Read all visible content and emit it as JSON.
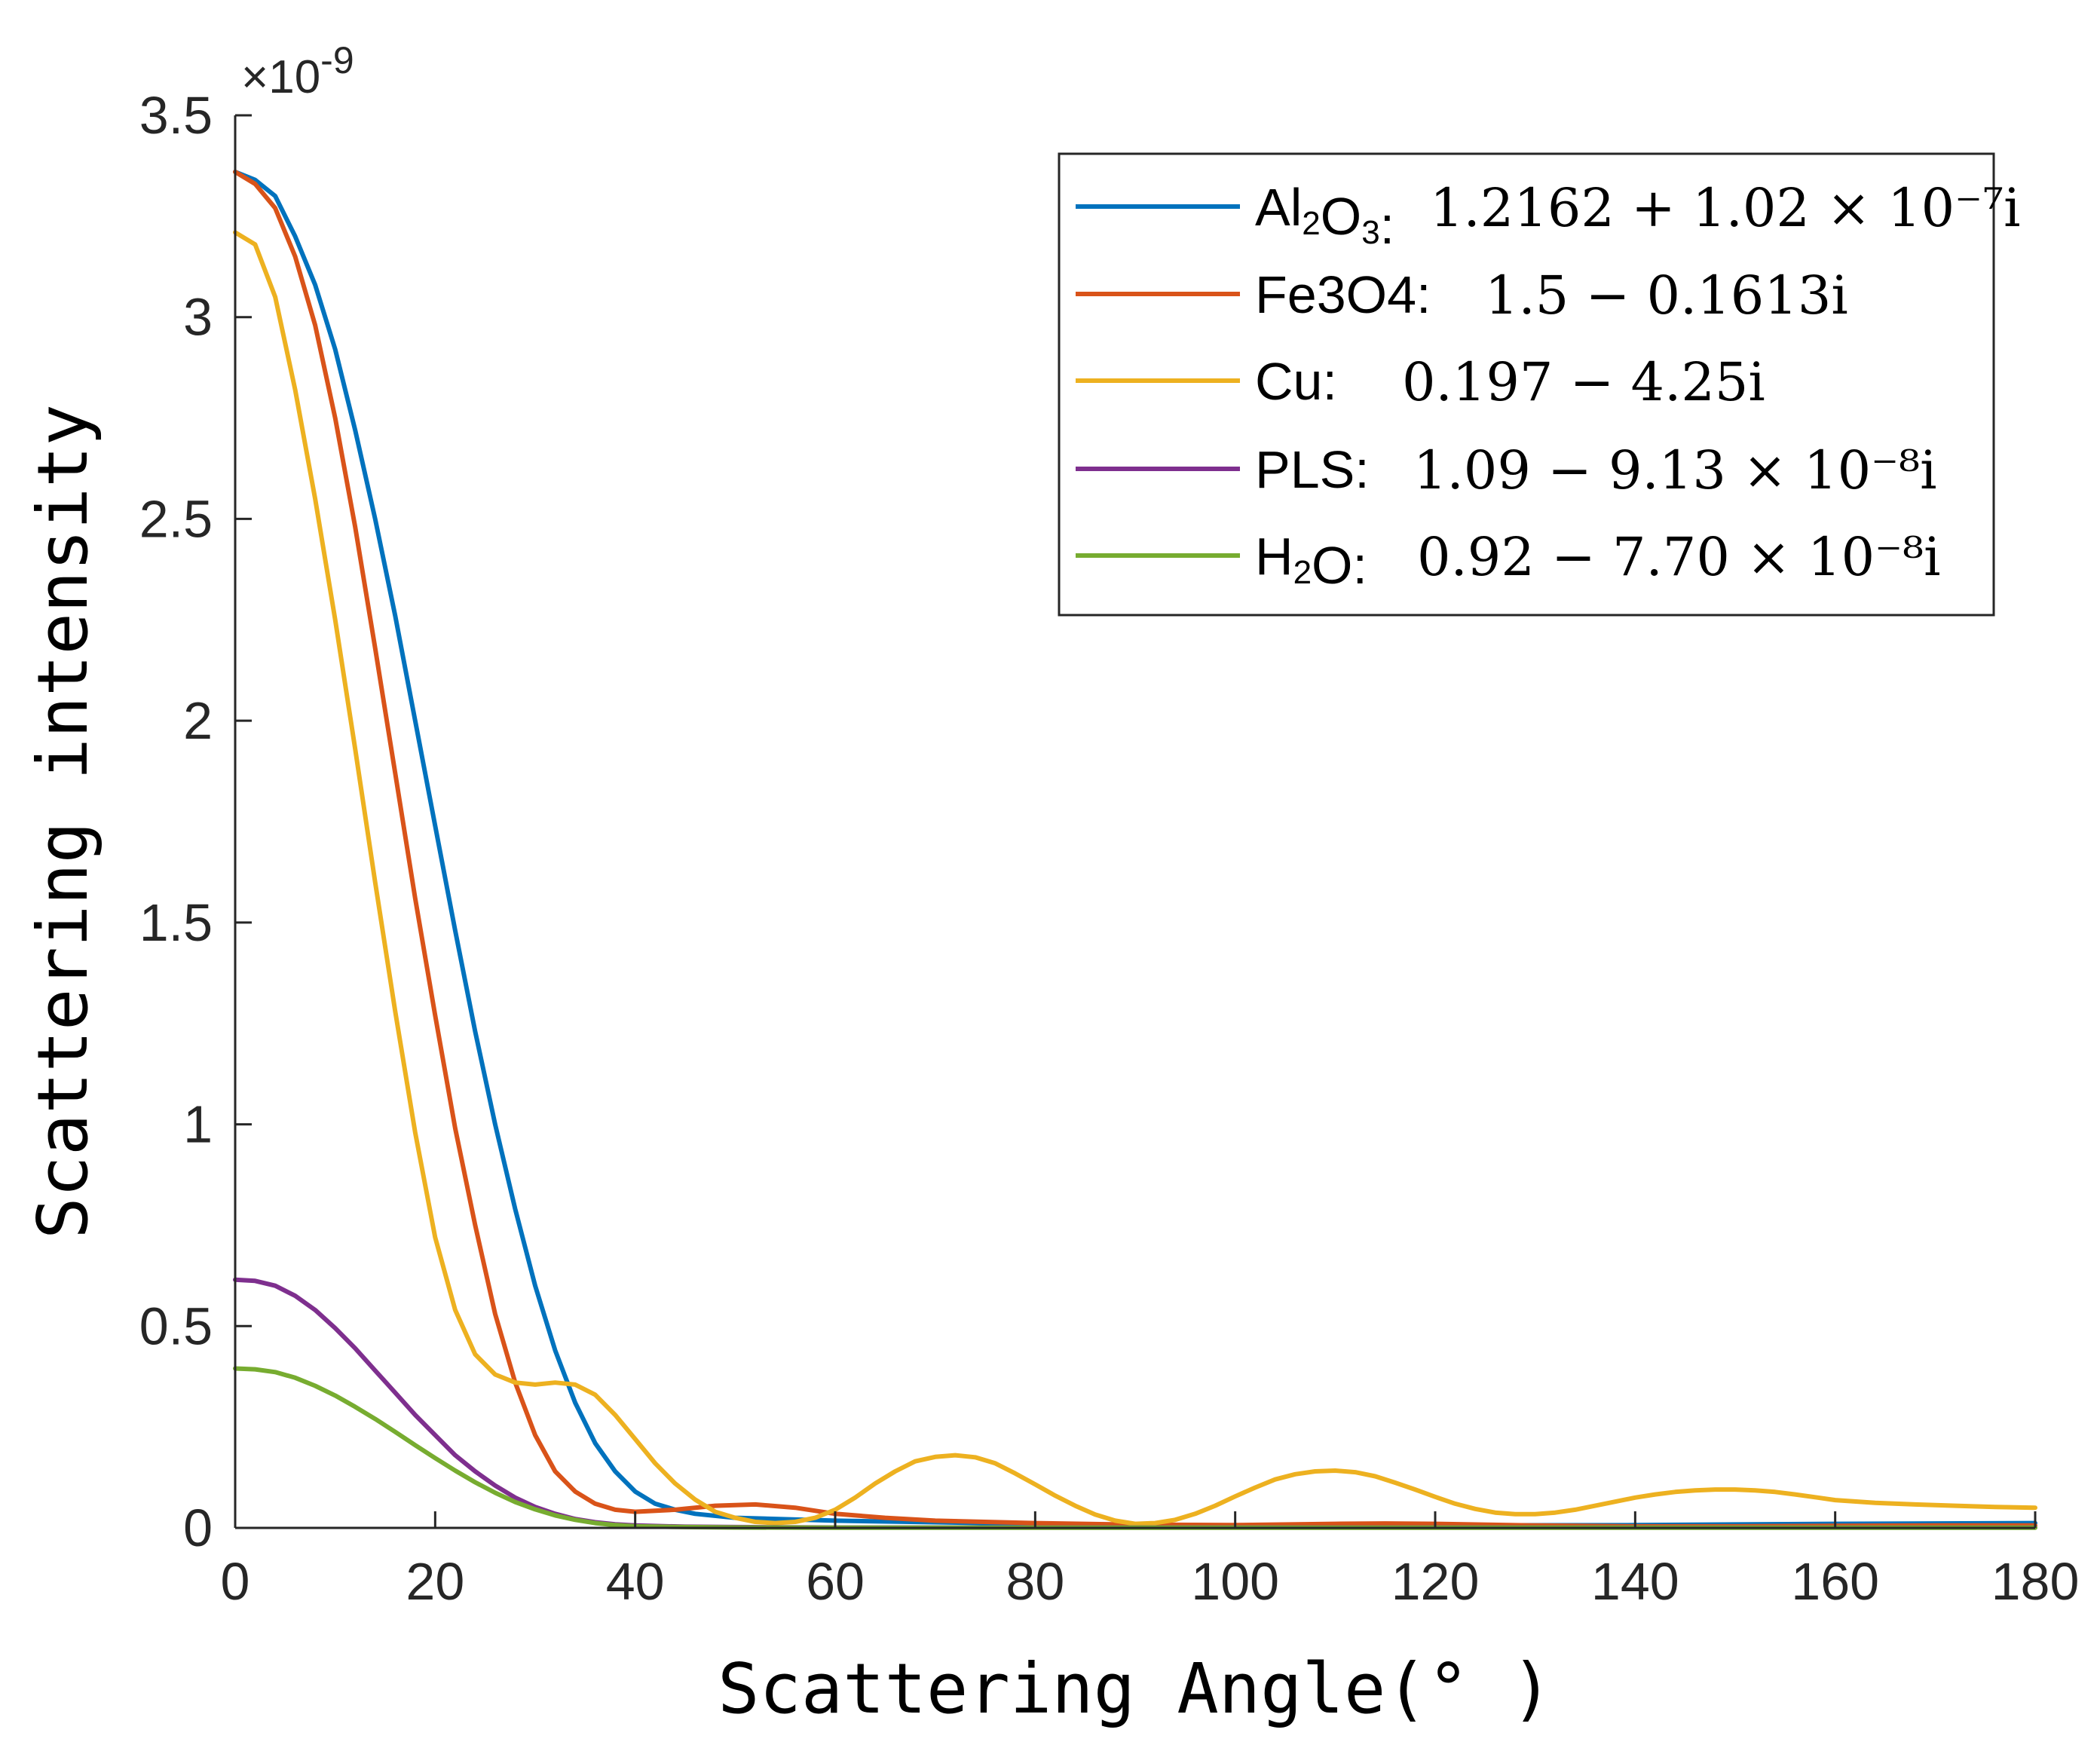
{
  "chart_data": {
    "type": "line",
    "title": "",
    "xlabel": "Scattering Angle(° )",
    "ylabel": "Scattering intensity",
    "y_exponent_label": "×10",
    "y_exponent_power": "-9",
    "xlim": [
      0,
      180
    ],
    "ylim": [
      0,
      3.5
    ],
    "x_ticks": [
      0,
      20,
      40,
      60,
      80,
      100,
      120,
      140,
      160,
      180
    ],
    "y_ticks": [
      0,
      0.5,
      1,
      1.5,
      2,
      2.5,
      3,
      3.5
    ],
    "y_tick_labels": [
      "0",
      "0.5",
      "1",
      "1.5",
      "2",
      "2.5",
      "3",
      "3.5"
    ],
    "grid": false,
    "legend_position": "top-right",
    "series": [
      {
        "name": "Al2O3",
        "label_parts": [
          "Al",
          "2",
          "O",
          "3",
          ":"
        ],
        "formula": "1.2162 + 1.02 × 10⁻⁷i",
        "color": "#0072BD",
        "points": [
          [
            0,
            3.36
          ],
          [
            2,
            3.34
          ],
          [
            4,
            3.3
          ],
          [
            6,
            3.2
          ],
          [
            8,
            3.08
          ],
          [
            10,
            2.92
          ],
          [
            12,
            2.72
          ],
          [
            14,
            2.5
          ],
          [
            16,
            2.26
          ],
          [
            18,
            2.0
          ],
          [
            20,
            1.74
          ],
          [
            22,
            1.48
          ],
          [
            24,
            1.23
          ],
          [
            26,
            1.0
          ],
          [
            28,
            0.79
          ],
          [
            30,
            0.6
          ],
          [
            32,
            0.44
          ],
          [
            34,
            0.31
          ],
          [
            36,
            0.21
          ],
          [
            38,
            0.14
          ],
          [
            40,
            0.09
          ],
          [
            42,
            0.06
          ],
          [
            44,
            0.045
          ],
          [
            46,
            0.035
          ],
          [
            50,
            0.025
          ],
          [
            60,
            0.018
          ],
          [
            70,
            0.014
          ],
          [
            80,
            0.01
          ],
          [
            90,
            0.008
          ],
          [
            100,
            0.006
          ],
          [
            120,
            0.006
          ],
          [
            140,
            0.007
          ],
          [
            160,
            0.01
          ],
          [
            180,
            0.012
          ]
        ]
      },
      {
        "name": "Fe3O4",
        "label_parts": [
          "Fe3O4:"
        ],
        "formula": "1.5 − 0.1613i",
        "color": "#D95319",
        "points": [
          [
            0,
            3.36
          ],
          [
            2,
            3.33
          ],
          [
            4,
            3.27
          ],
          [
            6,
            3.15
          ],
          [
            8,
            2.98
          ],
          [
            10,
            2.75
          ],
          [
            12,
            2.48
          ],
          [
            14,
            2.18
          ],
          [
            16,
            1.87
          ],
          [
            18,
            1.56
          ],
          [
            20,
            1.27
          ],
          [
            22,
            0.99
          ],
          [
            24,
            0.75
          ],
          [
            26,
            0.53
          ],
          [
            28,
            0.36
          ],
          [
            30,
            0.23
          ],
          [
            32,
            0.14
          ],
          [
            34,
            0.09
          ],
          [
            36,
            0.06
          ],
          [
            38,
            0.045
          ],
          [
            40,
            0.04
          ],
          [
            44,
            0.045
          ],
          [
            48,
            0.055
          ],
          [
            52,
            0.058
          ],
          [
            56,
            0.05
          ],
          [
            60,
            0.035
          ],
          [
            65,
            0.025
          ],
          [
            70,
            0.018
          ],
          [
            80,
            0.012
          ],
          [
            90,
            0.008
          ],
          [
            100,
            0.007
          ],
          [
            110,
            0.01
          ],
          [
            115,
            0.011
          ],
          [
            120,
            0.01
          ],
          [
            130,
            0.006
          ],
          [
            140,
            0.004
          ],
          [
            150,
            0.004
          ],
          [
            160,
            0.005
          ],
          [
            170,
            0.006
          ],
          [
            180,
            0.006
          ]
        ]
      },
      {
        "name": "Cu",
        "label_parts": [
          "Cu:"
        ],
        "formula": "0.197 − 4.25i",
        "color": "#EDB120",
        "points": [
          [
            0,
            3.21
          ],
          [
            2,
            3.18
          ],
          [
            4,
            3.05
          ],
          [
            6,
            2.82
          ],
          [
            8,
            2.55
          ],
          [
            10,
            2.25
          ],
          [
            12,
            1.93
          ],
          [
            14,
            1.6
          ],
          [
            16,
            1.28
          ],
          [
            18,
            0.98
          ],
          [
            20,
            0.72
          ],
          [
            22,
            0.54
          ],
          [
            24,
            0.43
          ],
          [
            26,
            0.38
          ],
          [
            28,
            0.36
          ],
          [
            30,
            0.355
          ],
          [
            32,
            0.36
          ],
          [
            34,
            0.355
          ],
          [
            36,
            0.33
          ],
          [
            38,
            0.28
          ],
          [
            40,
            0.22
          ],
          [
            42,
            0.16
          ],
          [
            44,
            0.11
          ],
          [
            46,
            0.07
          ],
          [
            48,
            0.04
          ],
          [
            50,
            0.025
          ],
          [
            52,
            0.015
          ],
          [
            54,
            0.012
          ],
          [
            56,
            0.015
          ],
          [
            58,
            0.025
          ],
          [
            60,
            0.045
          ],
          [
            62,
            0.075
          ],
          [
            64,
            0.11
          ],
          [
            66,
            0.14
          ],
          [
            68,
            0.165
          ],
          [
            70,
            0.176
          ],
          [
            72,
            0.18
          ],
          [
            74,
            0.175
          ],
          [
            76,
            0.16
          ],
          [
            78,
            0.135
          ],
          [
            80,
            0.108
          ],
          [
            82,
            0.08
          ],
          [
            84,
            0.055
          ],
          [
            86,
            0.033
          ],
          [
            88,
            0.018
          ],
          [
            90,
            0.01
          ],
          [
            92,
            0.012
          ],
          [
            94,
            0.02
          ],
          [
            96,
            0.035
          ],
          [
            98,
            0.055
          ],
          [
            100,
            0.078
          ],
          [
            102,
            0.1
          ],
          [
            104,
            0.12
          ],
          [
            106,
            0.133
          ],
          [
            108,
            0.14
          ],
          [
            110,
            0.142
          ],
          [
            112,
            0.138
          ],
          [
            114,
            0.128
          ],
          [
            116,
            0.112
          ],
          [
            118,
            0.095
          ],
          [
            120,
            0.077
          ],
          [
            122,
            0.06
          ],
          [
            124,
            0.047
          ],
          [
            126,
            0.038
          ],
          [
            128,
            0.034
          ],
          [
            130,
            0.034
          ],
          [
            132,
            0.038
          ],
          [
            134,
            0.045
          ],
          [
            136,
            0.055
          ],
          [
            138,
            0.065
          ],
          [
            140,
            0.075
          ],
          [
            142,
            0.083
          ],
          [
            144,
            0.089
          ],
          [
            146,
            0.093
          ],
          [
            148,
            0.095
          ],
          [
            150,
            0.095
          ],
          [
            152,
            0.093
          ],
          [
            154,
            0.089
          ],
          [
            156,
            0.083
          ],
          [
            158,
            0.076
          ],
          [
            160,
            0.069
          ],
          [
            164,
            0.062
          ],
          [
            168,
            0.058
          ],
          [
            172,
            0.055
          ],
          [
            176,
            0.052
          ],
          [
            180,
            0.05
          ]
        ]
      },
      {
        "name": "PLS",
        "label_parts": [
          "PLS:"
        ],
        "formula": "1.09 − 9.13 × 10⁻⁸i",
        "color": "#7E2F8E",
        "points": [
          [
            0,
            0.615
          ],
          [
            2,
            0.612
          ],
          [
            4,
            0.6
          ],
          [
            6,
            0.575
          ],
          [
            8,
            0.54
          ],
          [
            10,
            0.495
          ],
          [
            12,
            0.445
          ],
          [
            14,
            0.39
          ],
          [
            16,
            0.335
          ],
          [
            18,
            0.28
          ],
          [
            20,
            0.23
          ],
          [
            22,
            0.18
          ],
          [
            24,
            0.14
          ],
          [
            26,
            0.105
          ],
          [
            28,
            0.075
          ],
          [
            30,
            0.052
          ],
          [
            32,
            0.035
          ],
          [
            34,
            0.022
          ],
          [
            36,
            0.014
          ],
          [
            38,
            0.009
          ],
          [
            40,
            0.006
          ],
          [
            45,
            0.003
          ],
          [
            50,
            0.002
          ],
          [
            60,
            0.001
          ],
          [
            80,
            0.001
          ],
          [
            100,
            0.001
          ],
          [
            120,
            0.001
          ],
          [
            140,
            0.001
          ],
          [
            160,
            0.001
          ],
          [
            180,
            0.001
          ]
        ]
      },
      {
        "name": "H2O",
        "label_parts": [
          "H",
          "2",
          "O:"
        ],
        "formula": "0.92 − 7.70 × 10⁻⁸i",
        "color": "#77AC30",
        "points": [
          [
            0,
            0.395
          ],
          [
            2,
            0.393
          ],
          [
            4,
            0.386
          ],
          [
            6,
            0.372
          ],
          [
            8,
            0.352
          ],
          [
            10,
            0.328
          ],
          [
            12,
            0.3
          ],
          [
            14,
            0.27
          ],
          [
            16,
            0.238
          ],
          [
            18,
            0.205
          ],
          [
            20,
            0.173
          ],
          [
            22,
            0.142
          ],
          [
            24,
            0.113
          ],
          [
            26,
            0.087
          ],
          [
            28,
            0.064
          ],
          [
            30,
            0.046
          ],
          [
            32,
            0.031
          ],
          [
            34,
            0.02
          ],
          [
            36,
            0.012
          ],
          [
            38,
            0.007
          ],
          [
            40,
            0.004
          ],
          [
            45,
            0.002
          ],
          [
            50,
            0.001
          ],
          [
            60,
            0.0005
          ],
          [
            80,
            0.0005
          ],
          [
            100,
            0.0005
          ],
          [
            120,
            0.0005
          ],
          [
            140,
            0.0005
          ],
          [
            160,
            0.0005
          ],
          [
            180,
            0.0005
          ]
        ]
      }
    ]
  }
}
